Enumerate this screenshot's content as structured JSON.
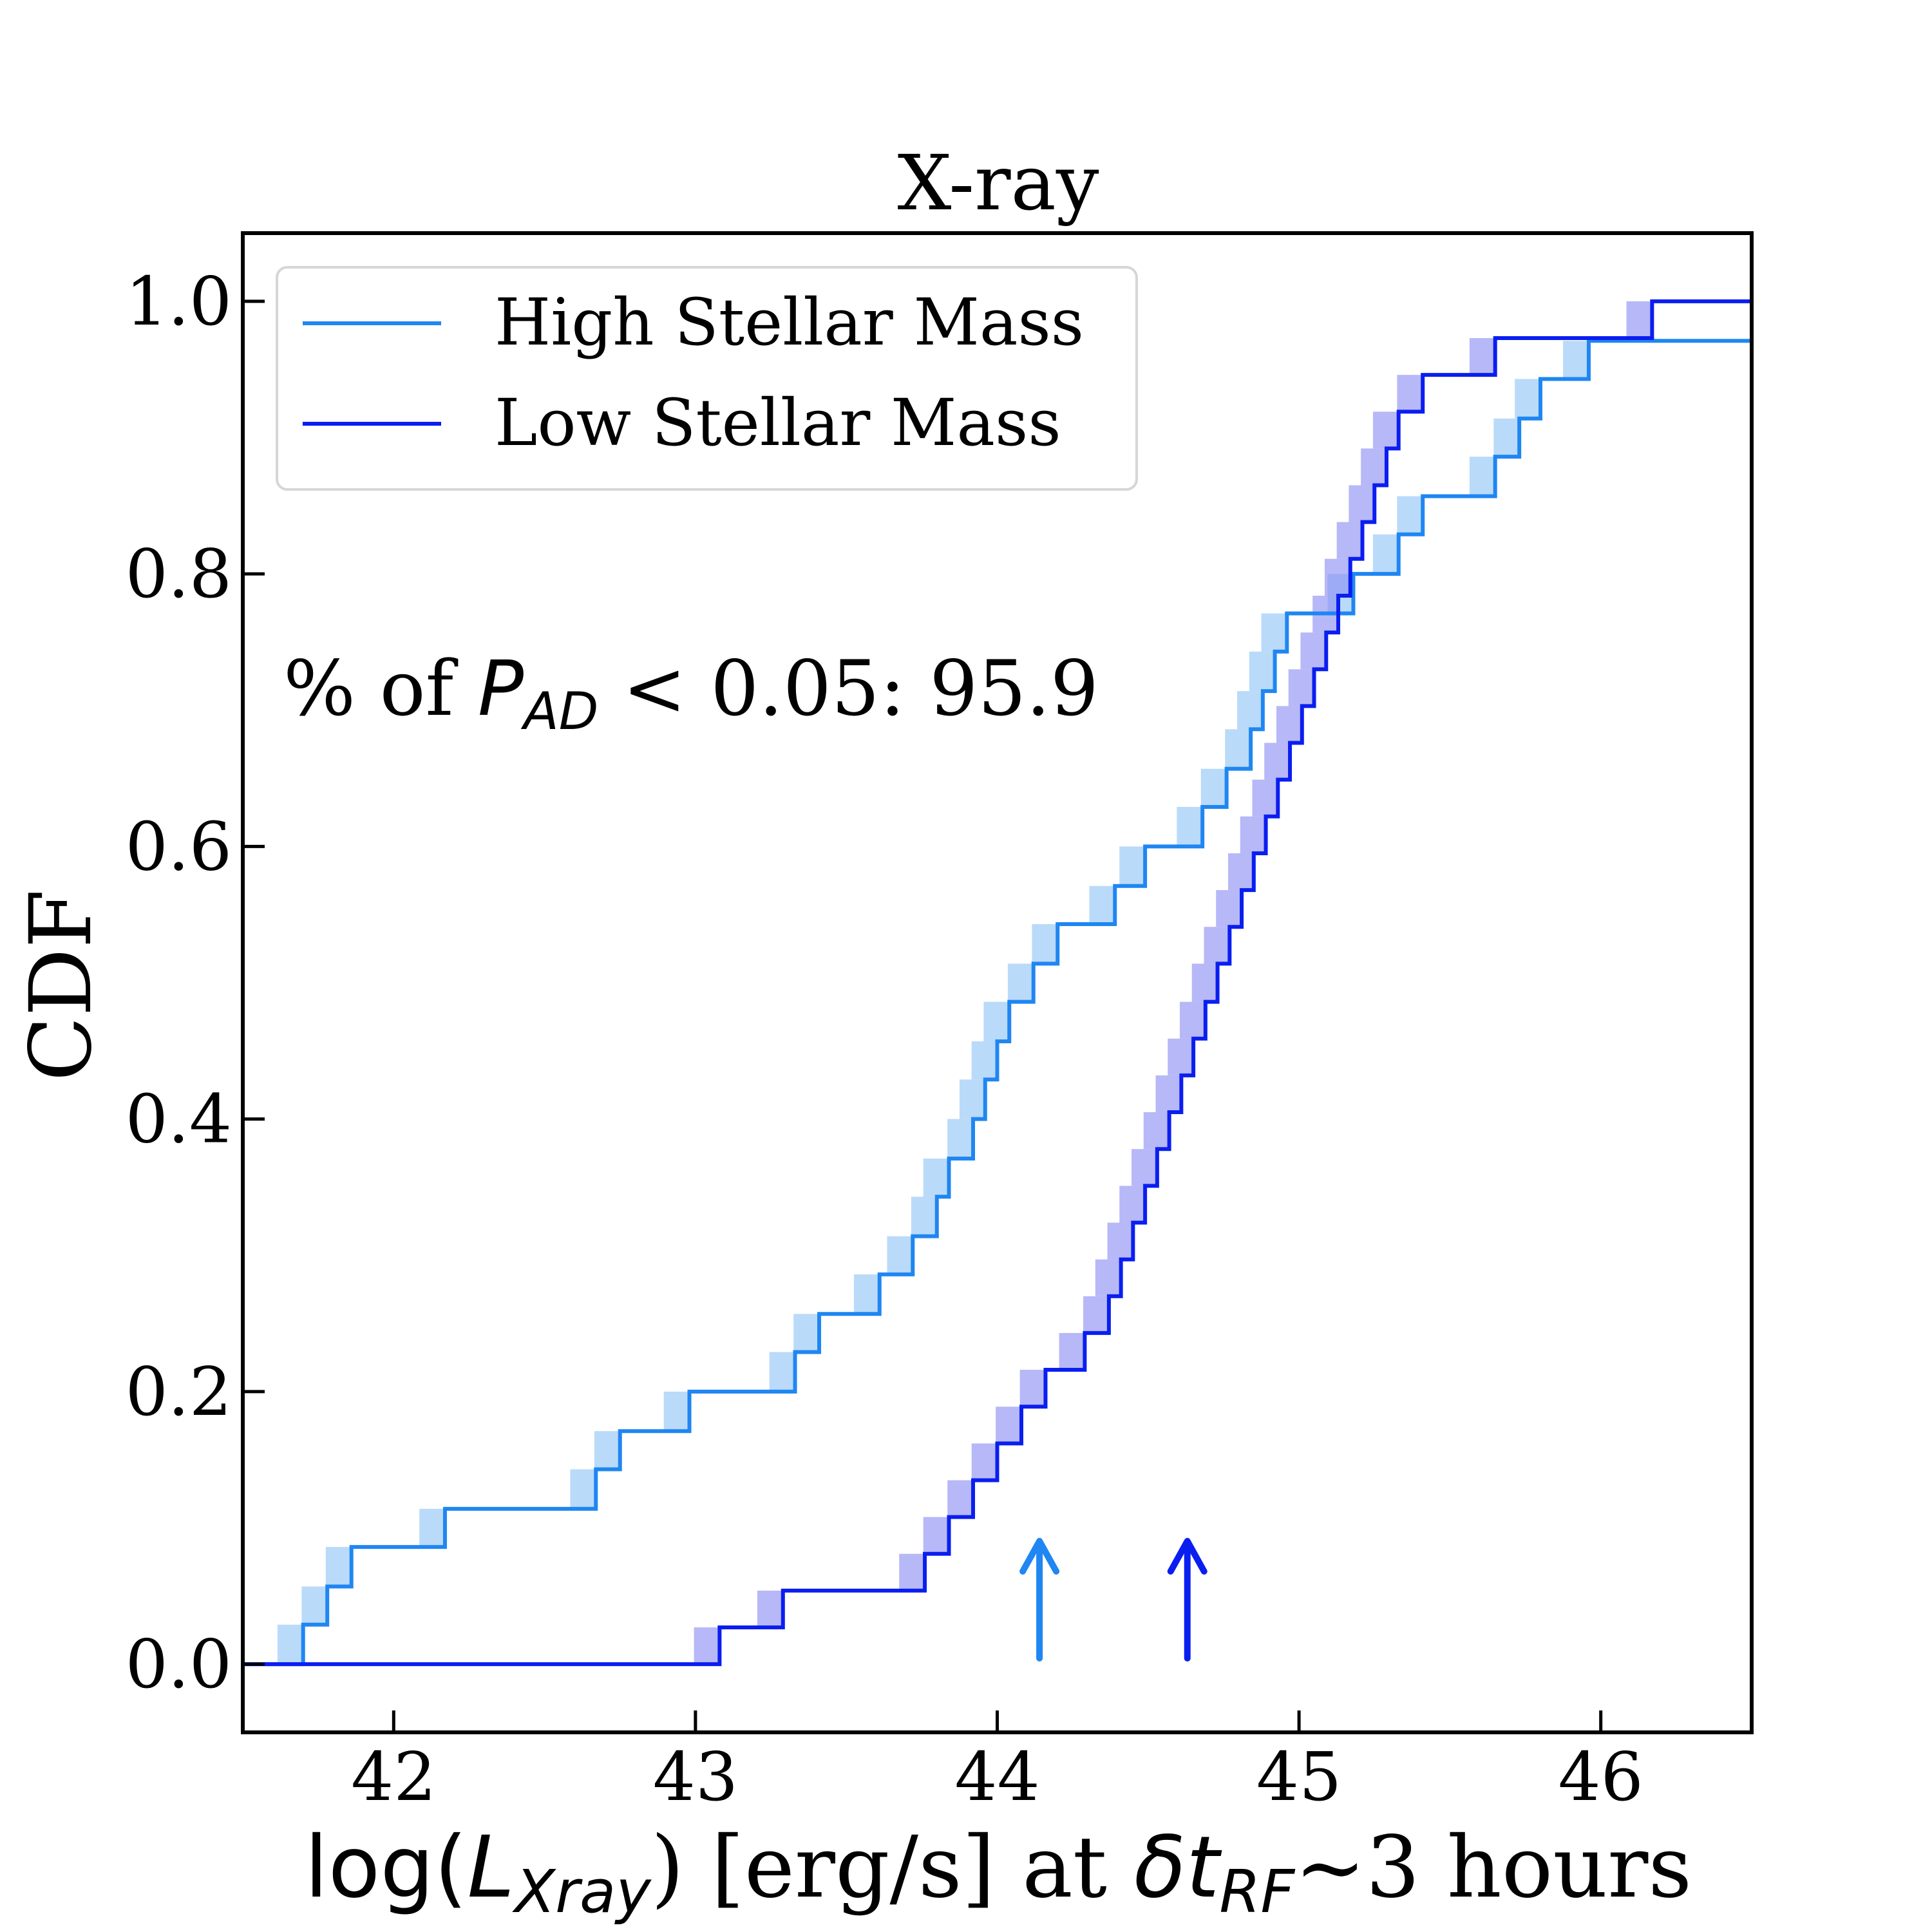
{
  "chart_data": {
    "type": "line",
    "title": "X-ray",
    "ylabel": "CDF",
    "xlabel": {
      "prefix": "log(",
      "L_main": "L",
      "L_sub": "Xray",
      "mid": ") [erg/s] at ",
      "delta": "δt",
      "rf_sub": "RF",
      "suffix": "~3 hours"
    },
    "xlim": [
      41.5,
      46.5
    ],
    "ylim": [
      -0.05,
      1.05
    ],
    "xticks": [
      42,
      43,
      44,
      45,
      46
    ],
    "xtick_labels": [
      "42",
      "43",
      "44",
      "45",
      "46"
    ],
    "yticks": [
      0.0,
      0.2,
      0.4,
      0.6,
      0.8,
      1.0
    ],
    "ytick_labels": [
      "0.0",
      "0.2",
      "0.4",
      "0.6",
      "0.8",
      "1.0"
    ],
    "annotation": {
      "prefix": "% of ",
      "P": "P",
      "P_sub": "AD",
      "suffix": " < 0.05: 95.9"
    },
    "series": [
      {
        "name": "High Stellar Mass",
        "color": "#1f86f2",
        "band_color": "#8fc4f6",
        "step_width": 0.085,
        "steps": [
          [
            41.7,
            0.029
          ],
          [
            41.78,
            0.057
          ],
          [
            41.86,
            0.086
          ],
          [
            42.17,
            0.114
          ],
          [
            42.67,
            0.143
          ],
          [
            42.75,
            0.171
          ],
          [
            42.98,
            0.2
          ],
          [
            43.33,
            0.229
          ],
          [
            43.41,
            0.257
          ],
          [
            43.61,
            0.286
          ],
          [
            43.72,
            0.314
          ],
          [
            43.8,
            0.343
          ],
          [
            43.84,
            0.371
          ],
          [
            43.92,
            0.4
          ],
          [
            43.96,
            0.429
          ],
          [
            44.0,
            0.457
          ],
          [
            44.04,
            0.486
          ],
          [
            44.12,
            0.514
          ],
          [
            44.2,
            0.543
          ],
          [
            44.39,
            0.571
          ],
          [
            44.49,
            0.6
          ],
          [
            44.68,
            0.629
          ],
          [
            44.76,
            0.657
          ],
          [
            44.84,
            0.686
          ],
          [
            44.88,
            0.714
          ],
          [
            44.92,
            0.743
          ],
          [
            44.96,
            0.771
          ],
          [
            45.18,
            0.8
          ],
          [
            45.33,
            0.829
          ],
          [
            45.41,
            0.857
          ],
          [
            45.65,
            0.886
          ],
          [
            45.73,
            0.914
          ],
          [
            45.8,
            0.943
          ],
          [
            45.96,
            0.971
          ]
        ],
        "end_value": 0.971
      },
      {
        "name": "Low Stellar Mass",
        "color": "#0a1ef0",
        "band_color": "#8a8cf2",
        "step_width": 0.085,
        "steps": [
          [
            43.08,
            0.027
          ],
          [
            43.29,
            0.054
          ],
          [
            43.76,
            0.081
          ],
          [
            43.84,
            0.108
          ],
          [
            43.92,
            0.135
          ],
          [
            44.0,
            0.162
          ],
          [
            44.08,
            0.189
          ],
          [
            44.16,
            0.216
          ],
          [
            44.29,
            0.243
          ],
          [
            44.37,
            0.27
          ],
          [
            44.41,
            0.297
          ],
          [
            44.45,
            0.324
          ],
          [
            44.49,
            0.351
          ],
          [
            44.53,
            0.378
          ],
          [
            44.57,
            0.405
          ],
          [
            44.61,
            0.432
          ],
          [
            44.65,
            0.459
          ],
          [
            44.69,
            0.486
          ],
          [
            44.73,
            0.514
          ],
          [
            44.77,
            0.541
          ],
          [
            44.81,
            0.568
          ],
          [
            44.85,
            0.595
          ],
          [
            44.89,
            0.622
          ],
          [
            44.93,
            0.649
          ],
          [
            44.97,
            0.676
          ],
          [
            45.01,
            0.703
          ],
          [
            45.05,
            0.73
          ],
          [
            45.09,
            0.757
          ],
          [
            45.13,
            0.784
          ],
          [
            45.17,
            0.811
          ],
          [
            45.21,
            0.838
          ],
          [
            45.25,
            0.865
          ],
          [
            45.29,
            0.892
          ],
          [
            45.33,
            0.919
          ],
          [
            45.41,
            0.946
          ],
          [
            45.65,
            0.973
          ],
          [
            46.17,
            1.0
          ]
        ],
        "end_value": 1.0
      }
    ],
    "markers": [
      {
        "series": "High Stellar Mass",
        "x": 44.14,
        "color": "#1f86f2"
      },
      {
        "series": "Low Stellar Mass",
        "x": 44.63,
        "color": "#0a1ef0"
      }
    ],
    "legend_position": "upper-left"
  }
}
